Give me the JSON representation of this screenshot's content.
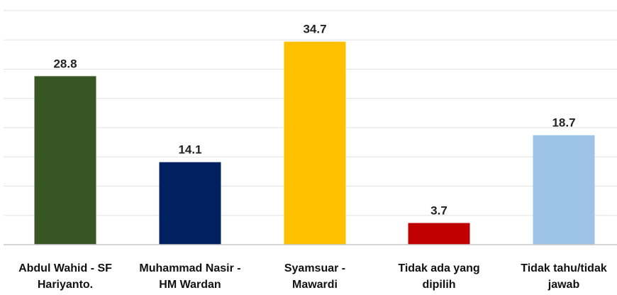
{
  "chart_data": {
    "type": "bar",
    "title": "",
    "xlabel": "",
    "ylabel": "",
    "ylim": [
      0,
      40
    ],
    "grid": true,
    "legend": "none",
    "categories": [
      [
        "Abdul Wahid - SF",
        "Hariyanto."
      ],
      [
        "Muhammad Nasir -",
        "HM Wardan"
      ],
      [
        "Syamsuar -",
        "Mawardi"
      ],
      [
        "Tidak ada yang",
        "dipilih"
      ],
      [
        "Tidak tahu/tidak",
        "jawab"
      ]
    ],
    "values": [
      28.8,
      14.1,
      34.7,
      3.7,
      18.7
    ],
    "value_labels": [
      "28.8",
      "14.1",
      "34.7",
      "3.7",
      "18.7"
    ],
    "colors": [
      "#375623",
      "#002060",
      "#FFC000",
      "#C00000",
      "#9DC3E6"
    ]
  }
}
